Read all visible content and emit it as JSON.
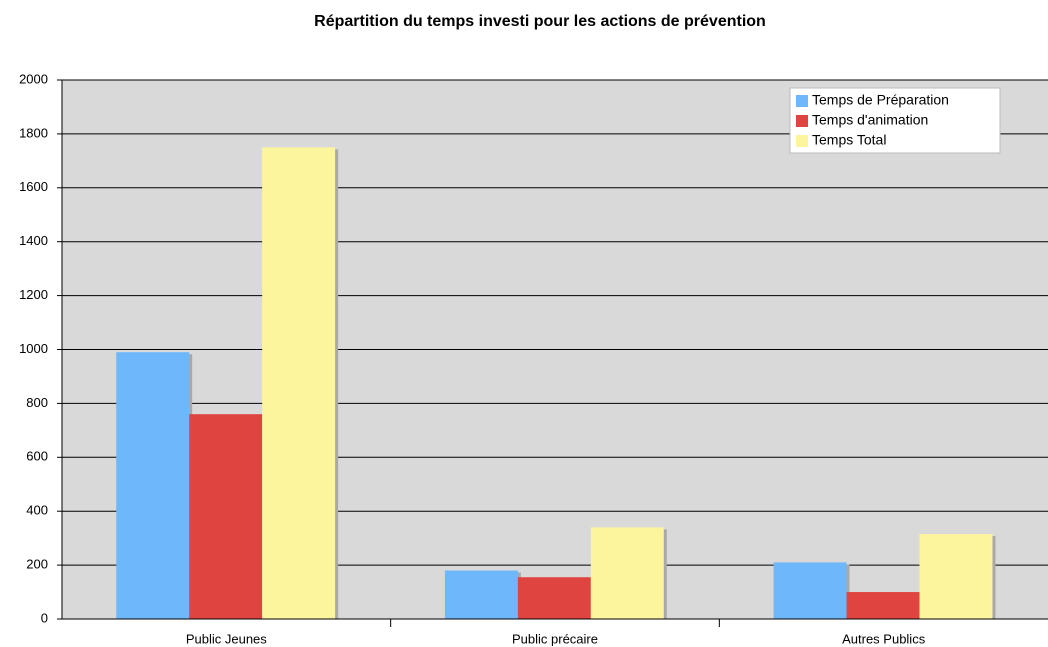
{
  "chart_data": {
    "type": "bar",
    "title": "Répartition du temps investi pour les actions de prévention",
    "categories": [
      "Public Jeunes",
      "Public précaire",
      "Autres Publics"
    ],
    "series": [
      {
        "name": "Temps de Préparation",
        "color": "#6fb7fb",
        "values": [
          990,
          180,
          210
        ]
      },
      {
        "name": "Temps d'animation",
        "color": "#e04440",
        "values": [
          760,
          155,
          100
        ]
      },
      {
        "name": "Temps Total",
        "color": "#fdf49e",
        "values": [
          1750,
          340,
          315
        ]
      }
    ],
    "ylim": [
      0,
      2000
    ],
    "yticks": [
      0,
      200,
      400,
      600,
      800,
      1000,
      1200,
      1400,
      1600,
      1800,
      2000
    ],
    "grid": true,
    "legend": "top-right"
  }
}
